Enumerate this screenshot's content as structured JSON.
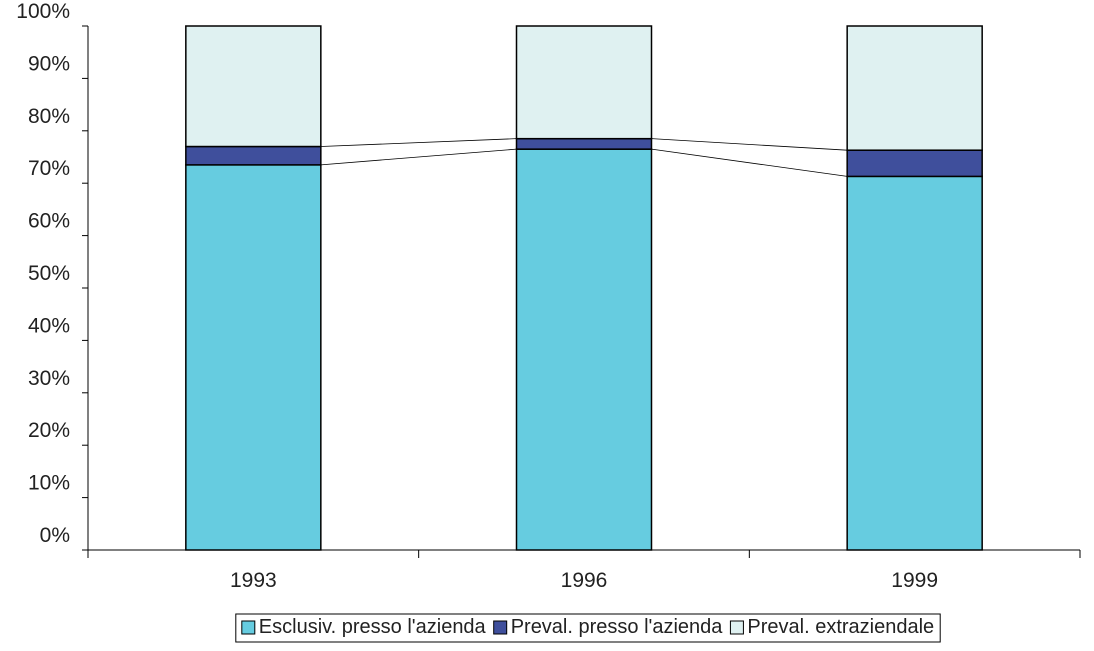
{
  "chart_data": {
    "type": "bar",
    "stacked": true,
    "percent_stacked": true,
    "categories": [
      "1993",
      "1996",
      "1999"
    ],
    "series": [
      {
        "name": "Esclusiv. presso l'azienda",
        "color": "#66CCE0",
        "values": [
          73.5,
          76.5,
          71.3
        ]
      },
      {
        "name": "Preval. presso l'azienda",
        "color": "#3F4F9C",
        "values": [
          3.5,
          2.0,
          5.0
        ]
      },
      {
        "name": "Preval. extraziendale",
        "color": "#DFF1F1",
        "values": [
          23.0,
          21.5,
          23.7
        ]
      }
    ],
    "y_ticks": [
      "0%",
      "10%",
      "20%",
      "30%",
      "40%",
      "50%",
      "60%",
      "70%",
      "80%",
      "90%",
      "100%"
    ],
    "ylim": [
      0,
      100
    ],
    "series_connectors": true,
    "grid": false,
    "legend_position": "bottom",
    "title": "",
    "xlabel": "",
    "ylabel": ""
  }
}
